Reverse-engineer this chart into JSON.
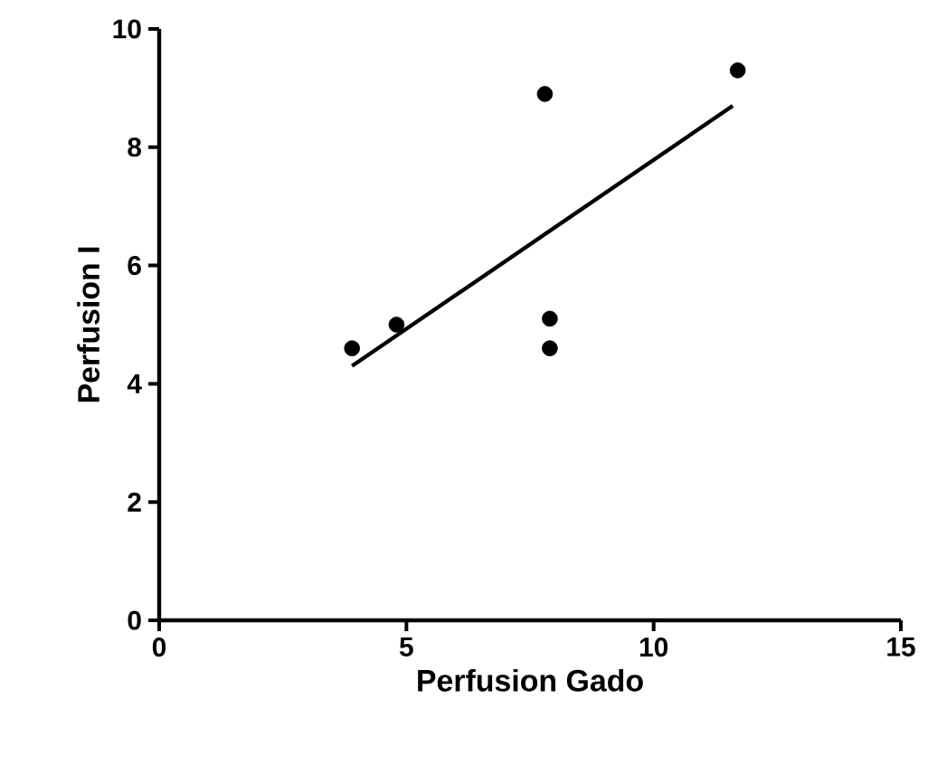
{
  "chart_data": {
    "type": "scatter",
    "xlabel": "Perfusion Gado",
    "ylabel": "Perfusion I",
    "xlim": [
      0,
      15
    ],
    "ylim": [
      0,
      10
    ],
    "xticks": [
      0,
      5,
      10,
      15
    ],
    "yticks": [
      0,
      2,
      4,
      6,
      8,
      10
    ],
    "grid": false,
    "series": [
      {
        "marker": "circle",
        "color": "#000000",
        "x": [
          3.9,
          4.8,
          7.8,
          7.9,
          7.9,
          11.7
        ],
        "values": [
          4.6,
          5.0,
          8.9,
          5.1,
          4.6,
          9.3
        ]
      },
      {
        "type": "line",
        "color": "#000000",
        "line_style": "solid",
        "x": [
          3.9,
          11.6
        ],
        "values": [
          4.3,
          8.7
        ]
      }
    ]
  }
}
